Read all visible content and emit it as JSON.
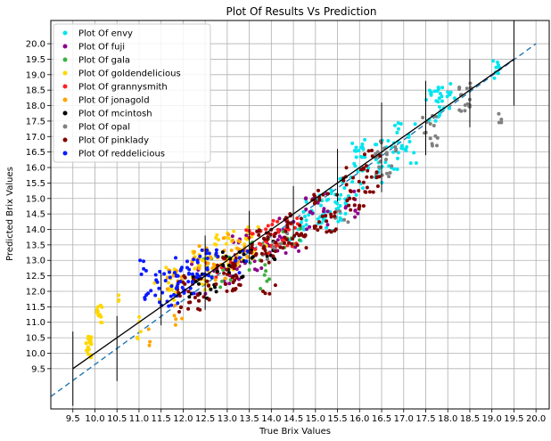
{
  "chart_data": {
    "type": "scatter",
    "title": "Plot Of Results Vs Prediction",
    "xlabel": "True Brix Values",
    "ylabel": "Predicted Brix Values",
    "xlim": [
      9.0,
      20.3
    ],
    "ylim": [
      8.2,
      20.75
    ],
    "x_ticks": [
      "9.5",
      "10.0",
      "10.5",
      "11.0",
      "11.5",
      "12.0",
      "12.5",
      "13.0",
      "13.5",
      "14.0",
      "14.5",
      "15.0",
      "15.5",
      "16.0",
      "16.5",
      "17.0",
      "17.5",
      "18.0",
      "18.5",
      "19.0",
      "19.5",
      "20.0"
    ],
    "y_ticks": [
      "9.5",
      "10.0",
      "10.5",
      "11.0",
      "11.5",
      "12.0",
      "12.5",
      "13.0",
      "13.5",
      "14.0",
      "14.5",
      "15.0",
      "15.5",
      "16.0",
      "16.5",
      "17.0",
      "17.5",
      "18.0",
      "18.5",
      "19.0",
      "19.5",
      "20.0"
    ],
    "grid": true,
    "legend_position": "top-left",
    "series": [
      {
        "name": "Plot Of envy",
        "color": "#00e5ee",
        "clusters": [
          [
            15.0,
            14.6,
            0.35,
            0.5,
            25
          ],
          [
            15.6,
            15.1,
            0.25,
            0.6,
            20
          ],
          [
            16.0,
            16.0,
            0.2,
            0.9,
            25
          ],
          [
            16.6,
            16.2,
            0.3,
            0.7,
            20
          ],
          [
            17.0,
            16.8,
            0.3,
            0.7,
            22
          ],
          [
            17.7,
            18.0,
            0.2,
            0.6,
            20
          ],
          [
            18.0,
            18.3,
            0.25,
            0.5,
            12
          ],
          [
            19.1,
            19.1,
            0.08,
            0.35,
            8
          ],
          [
            14.6,
            14.0,
            0.2,
            0.5,
            12
          ],
          [
            15.4,
            14.4,
            0.2,
            0.5,
            10
          ]
        ]
      },
      {
        "name": "Plot Of fuji",
        "color": "#8b008b",
        "clusters": [
          [
            13.5,
            13.3,
            0.4,
            0.7,
            20
          ],
          [
            14.3,
            13.8,
            0.4,
            0.6,
            18
          ],
          [
            15.0,
            14.6,
            0.3,
            0.6,
            15
          ],
          [
            15.8,
            14.8,
            0.2,
            0.5,
            10
          ],
          [
            13.0,
            12.8,
            0.3,
            0.6,
            10
          ],
          [
            12.3,
            12.4,
            0.3,
            0.5,
            8
          ]
        ]
      },
      {
        "name": "Plot Of gala",
        "color": "#3cb040",
        "clusters": [
          [
            12.8,
            12.7,
            0.4,
            0.6,
            14
          ],
          [
            13.7,
            13.1,
            0.3,
            0.6,
            12
          ],
          [
            14.4,
            13.8,
            0.3,
            0.5,
            8
          ],
          [
            13.9,
            12.2,
            0.15,
            0.3,
            3
          ]
        ]
      },
      {
        "name": "Plot Of goldendelicious",
        "color": "#ffd700",
        "clusters": [
          [
            9.85,
            10.2,
            0.07,
            0.35,
            22
          ],
          [
            10.1,
            11.3,
            0.07,
            0.35,
            14
          ],
          [
            10.5,
            11.8,
            0.05,
            0.15,
            3
          ],
          [
            11.0,
            10.8,
            0.05,
            0.4,
            5
          ],
          [
            11.6,
            12.3,
            0.25,
            0.6,
            15
          ],
          [
            12.5,
            12.7,
            0.3,
            0.7,
            25
          ],
          [
            13.0,
            13.4,
            0.3,
            0.7,
            25
          ],
          [
            13.6,
            13.6,
            0.3,
            0.6,
            15
          ]
        ]
      },
      {
        "name": "Plot Of grannysmith",
        "color": "#ff2020",
        "clusters": [
          [
            13.8,
            13.7,
            0.4,
            0.5,
            25
          ],
          [
            14.3,
            13.9,
            0.3,
            0.5,
            18
          ],
          [
            12.8,
            12.7,
            0.3,
            0.4,
            8
          ]
        ]
      },
      {
        "name": "Plot Of jonagold",
        "color": "#ffa500",
        "clusters": [
          [
            12.6,
            12.9,
            0.4,
            0.6,
            25
          ],
          [
            13.2,
            13.3,
            0.3,
            0.6,
            20
          ],
          [
            11.8,
            12.4,
            0.2,
            0.4,
            10
          ],
          [
            12.0,
            11.2,
            0.2,
            0.4,
            6
          ],
          [
            11.2,
            10.5,
            0.1,
            0.3,
            3
          ]
        ]
      },
      {
        "name": "Plot Of mcintosh",
        "color": "#000000",
        "clusters": [
          [
            12.4,
            12.2,
            0.4,
            0.5,
            15
          ],
          [
            13.1,
            12.9,
            0.3,
            0.5,
            15
          ],
          [
            13.8,
            13.3,
            0.3,
            0.5,
            10
          ]
        ]
      },
      {
        "name": "Plot Of opal",
        "color": "#808080",
        "clusters": [
          [
            16.6,
            16.3,
            0.25,
            0.6,
            22
          ],
          [
            17.6,
            17.2,
            0.2,
            0.5,
            14
          ],
          [
            18.4,
            18.3,
            0.15,
            0.5,
            18
          ],
          [
            19.2,
            17.6,
            0.05,
            0.15,
            4
          ],
          [
            14.1,
            13.5,
            0.3,
            0.5,
            8
          ],
          [
            15.6,
            14.6,
            0.2,
            0.4,
            6
          ]
        ]
      },
      {
        "name": "Plot Of pinklady",
        "color": "#800000",
        "clusters": [
          [
            12.2,
            11.9,
            0.4,
            0.6,
            30
          ],
          [
            13.0,
            12.6,
            0.3,
            0.6,
            30
          ],
          [
            13.8,
            13.5,
            0.3,
            0.6,
            30
          ],
          [
            14.5,
            14.0,
            0.3,
            0.6,
            30
          ],
          [
            15.2,
            14.6,
            0.3,
            0.7,
            30
          ],
          [
            15.9,
            15.3,
            0.3,
            0.7,
            28
          ],
          [
            16.3,
            15.9,
            0.2,
            0.7,
            15
          ],
          [
            14.0,
            12.0,
            0.2,
            0.3,
            4
          ]
        ]
      },
      {
        "name": "Plot Of reddelicious",
        "color": "#0a1aff",
        "clusters": [
          [
            11.6,
            12.1,
            0.3,
            0.6,
            25
          ],
          [
            12.1,
            12.5,
            0.3,
            0.6,
            25
          ],
          [
            12.5,
            12.8,
            0.3,
            0.6,
            20
          ],
          [
            11.1,
            12.6,
            0.1,
            0.8,
            6
          ],
          [
            11.2,
            11.9,
            0.1,
            0.3,
            4
          ],
          [
            13.3,
            13.0,
            0.2,
            0.5,
            6
          ]
        ]
      }
    ],
    "reference_line": {
      "x": [
        9.0,
        20.0
      ],
      "y": [
        8.6,
        20.0
      ],
      "color": "#1f77b4",
      "style": "dashed"
    },
    "fit_line": {
      "x": [
        9.5,
        19.5
      ],
      "y": [
        9.5,
        19.5
      ],
      "color": "#000000"
    },
    "error_bars": [
      {
        "x": 9.5,
        "low": 8.3,
        "high": 10.7
      },
      {
        "x": 10.5,
        "low": 9.1,
        "high": 11.2
      },
      {
        "x": 11.5,
        "low": 10.9,
        "high": 12.6
      },
      {
        "x": 12.5,
        "low": 11.4,
        "high": 13.8
      },
      {
        "x": 13.5,
        "low": 12.9,
        "high": 14.6
      },
      {
        "x": 14.5,
        "low": 13.8,
        "high": 15.4
      },
      {
        "x": 15.5,
        "low": 14.9,
        "high": 16.6
      },
      {
        "x": 16.5,
        "low": 15.2,
        "high": 18.1
      },
      {
        "x": 17.5,
        "low": 16.4,
        "high": 18.8
      },
      {
        "x": 18.5,
        "low": 17.3,
        "high": 19.5
      },
      {
        "x": 19.5,
        "low": 18.0,
        "high": 21.0
      }
    ]
  }
}
